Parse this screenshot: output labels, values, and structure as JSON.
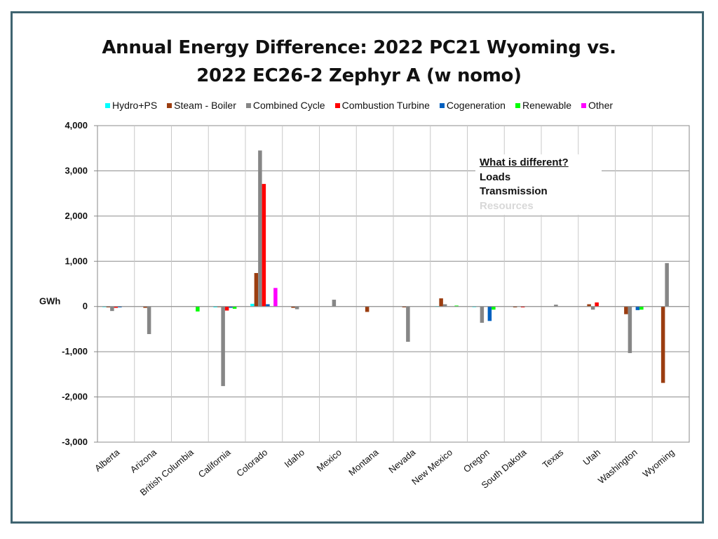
{
  "chart_data": {
    "type": "bar",
    "title_line1": "Annual Energy Difference: 2022 PC21 Wyoming vs.",
    "title_line2": "2022 EC26-2 Zephyr A (w nomo)",
    "ylabel": "GWh",
    "ylim": [
      -3000,
      4000
    ],
    "yticks": [
      4000,
      3000,
      2000,
      1000,
      0,
      -1000,
      -2000,
      -3000
    ],
    "ytick_labels": [
      "4,000",
      "3,000",
      "2,000",
      "1,000",
      "0",
      "-1,000",
      "-2,000",
      "-3,000"
    ],
    "grid": true,
    "legend_position": "top",
    "categories": [
      "Alberta",
      "Arizona",
      "British Columbia",
      "California",
      "Colorado",
      "Idaho",
      "Mexico",
      "Montana",
      "Nevada",
      "New Mexico",
      "Oregon",
      "South Dakota",
      "Texas",
      "Utah",
      "Washington",
      "Wyoming"
    ],
    "series": [
      {
        "name": "Hydro+PS",
        "color": "#00ffff",
        "values": [
          -10,
          0,
          0,
          -20,
          60,
          0,
          0,
          0,
          0,
          10,
          -10,
          0,
          0,
          0,
          0,
          0
        ]
      },
      {
        "name": "Steam - Boiler",
        "color": "#9b3d10",
        "values": [
          -20,
          -30,
          0,
          -10,
          740,
          -30,
          0,
          -120,
          -20,
          180,
          0,
          -20,
          0,
          50,
          -170,
          -1690
        ]
      },
      {
        "name": "Combined Cycle",
        "color": "#868686",
        "values": [
          -100,
          -610,
          0,
          -1760,
          3450,
          -60,
          150,
          0,
          -780,
          50,
          -360,
          0,
          40,
          -70,
          -1030,
          960
        ]
      },
      {
        "name": "Combustion Turbine",
        "color": "#ff0000",
        "values": [
          -30,
          0,
          0,
          -90,
          2710,
          0,
          0,
          0,
          0,
          0,
          0,
          -20,
          0,
          90,
          0,
          0
        ]
      },
      {
        "name": "Cogeneration",
        "color": "#0060c0",
        "values": [
          -20,
          0,
          0,
          -30,
          50,
          0,
          0,
          0,
          0,
          0,
          -320,
          0,
          0,
          0,
          -80,
          0
        ]
      },
      {
        "name": "Renewable",
        "color": "#00ff00",
        "values": [
          0,
          0,
          -110,
          -50,
          0,
          0,
          0,
          0,
          0,
          20,
          -70,
          0,
          0,
          0,
          -70,
          0
        ]
      },
      {
        "name": "Other",
        "color": "#ff00ff",
        "values": [
          0,
          0,
          0,
          0,
          410,
          0,
          0,
          0,
          0,
          0,
          0,
          0,
          0,
          0,
          0,
          0
        ]
      }
    ]
  },
  "callout": {
    "heading": "What is different?",
    "line1": "Loads",
    "line2": "Transmission",
    "line3": "Resources"
  }
}
